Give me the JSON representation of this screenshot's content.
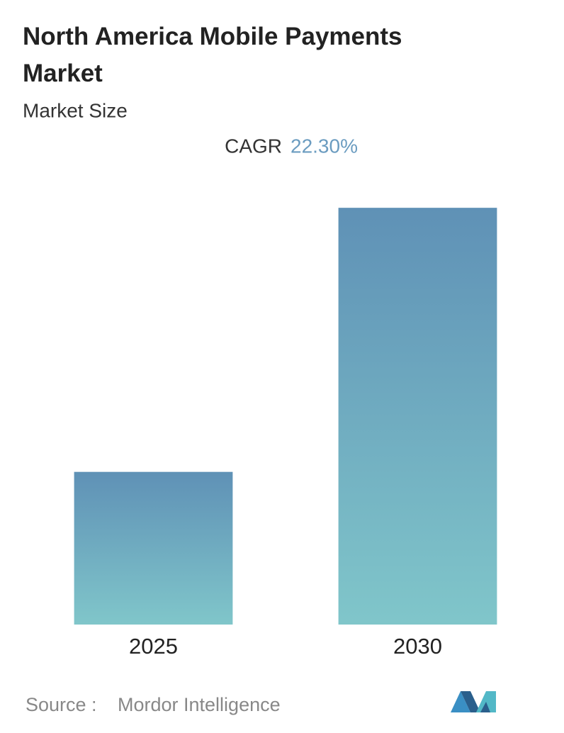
{
  "chart_data": {
    "type": "bar",
    "title": "North America Mobile Payments Market",
    "subtitle": "Market Size",
    "cagr_label": "CAGR",
    "cagr_value": "22.30%",
    "categories": [
      "2025",
      "2030"
    ],
    "values": [
      1,
      2.73
    ],
    "ylim": [
      0,
      3
    ],
    "colors": [
      "#5f91b6",
      "#80c6ca"
    ],
    "source_label": "Source :",
    "source": "Mordor Intelligence"
  }
}
